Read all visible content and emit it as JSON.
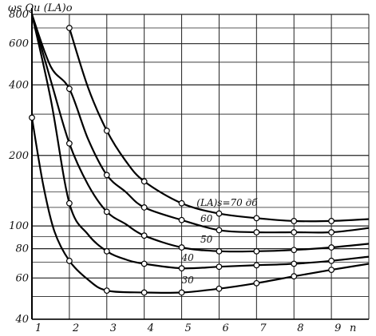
{
  "chart_data": {
    "type": "line",
    "ylabel": "ωs Qu (LA)o",
    "xlabel": "n",
    "y_scale": "log",
    "grid": true,
    "xlim": [
      1,
      10
    ],
    "ylim": [
      40,
      800
    ],
    "x_ticks": [
      1,
      2,
      3,
      4,
      5,
      6,
      7,
      8,
      9
    ],
    "x_tick_labels": [
      "1",
      "2",
      "3",
      "4",
      "5",
      "6",
      "7",
      "8",
      "9"
    ],
    "y_ticks": [
      40,
      60,
      80,
      100,
      200,
      400,
      600,
      800
    ],
    "y_tick_labels": [
      "40",
      "60",
      "80",
      "100",
      "200",
      "400",
      "600",
      "800"
    ],
    "series": [
      {
        "name": "(LA)s=70 дб",
        "x": [
          2,
          2.5,
          3,
          3.5,
          4,
          5,
          6,
          7,
          8,
          9,
          10
        ],
        "y": [
          700,
          390,
          255,
          190,
          155,
          125,
          113,
          108,
          105,
          105,
          107
        ],
        "markers_x": [
          2,
          3,
          4,
          5,
          6,
          7,
          8,
          9
        ]
      },
      {
        "name": "60",
        "x": [
          1,
          1.5,
          2,
          2.5,
          3,
          3.5,
          4,
          5,
          6,
          7,
          8,
          9,
          10
        ],
        "y": [
          800,
          480,
          385,
          235,
          165,
          140,
          120,
          106,
          96,
          94,
          94,
          94,
          98
        ],
        "markers_x": [
          2,
          3,
          4,
          5,
          6,
          7,
          8,
          9
        ]
      },
      {
        "name": "50",
        "x": [
          1,
          1.5,
          2,
          2.5,
          3,
          3.5,
          4,
          5,
          6,
          7,
          8,
          9,
          10
        ],
        "y": [
          800,
          420,
          225,
          150,
          115,
          102,
          91,
          81,
          78,
          78,
          79,
          81,
          84
        ],
        "markers_x": [
          2,
          3,
          4,
          5,
          6,
          7,
          8,
          9
        ]
      },
      {
        "name": "40",
        "x": [
          1,
          1.5,
          2,
          2.5,
          3,
          3.5,
          4,
          5,
          6,
          7,
          8,
          9,
          10
        ],
        "y": [
          800,
          350,
          125,
          92,
          78,
          72,
          69,
          66,
          67,
          68,
          69,
          71,
          74
        ],
        "markers_x": [
          2,
          3,
          4,
          5,
          6,
          7,
          8,
          9
        ]
      },
      {
        "name": "30",
        "x": [
          1,
          1.3,
          1.6,
          2,
          2.5,
          3,
          4,
          5,
          6,
          7,
          8,
          9,
          10
        ],
        "y": [
          290,
          150,
          95,
          71,
          59,
          53,
          52,
          52,
          54,
          57,
          61,
          65,
          69
        ],
        "markers_x": [
          1,
          2,
          3,
          4,
          5,
          6,
          7,
          8,
          9
        ]
      }
    ]
  }
}
